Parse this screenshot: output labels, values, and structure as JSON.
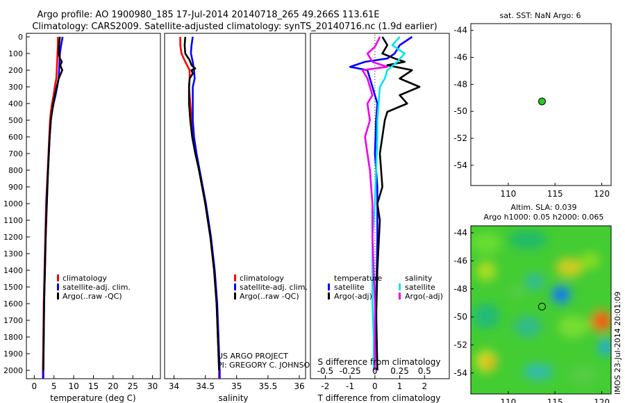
{
  "title_line1": "Argo profile: AO 1900980_185 17-Jul-2014 20140718_265 49.266S 113.61E",
  "title_line2": "Climatology: CARS2009. Satellite-adjusted climatology: synTS_20140716.nc (1.9d earlier)",
  "project_line1": "US ARGO PROJECT",
  "project_line2": "PI: GREGORY C. JOHNSON",
  "timestamp": "IMOS 23-Jul-2014 20:01:09",
  "colors": {
    "red": "#ff0000",
    "blue": "#0000ff",
    "black": "#000000",
    "cyan": "#00e5ee",
    "magenta": "#ee00ee",
    "green": "#22cc22"
  },
  "depth_ticks": [
    0,
    100,
    200,
    300,
    400,
    500,
    600,
    700,
    800,
    900,
    1000,
    1100,
    1200,
    1300,
    1400,
    1500,
    1600,
    1700,
    1800,
    1900,
    2000
  ],
  "chart_data": [
    {
      "type": "line",
      "xlabel": "temperature (deg C)",
      "xlim": [
        -2,
        32
      ],
      "ylim": [
        2070,
        0
      ],
      "xticks": [
        0,
        5,
        10,
        15,
        20,
        25,
        30
      ],
      "legend": [
        "climatology",
        "satellite-adj. clim.",
        "Argo(..raw -QC)"
      ],
      "series": [
        {
          "name": "climatology",
          "color": "red",
          "depth": [
            0,
            50,
            100,
            150,
            200,
            250,
            300,
            350,
            400,
            450,
            500,
            600,
            700,
            800,
            900,
            1000,
            1200,
            1400,
            1600,
            1800,
            2000,
            2050
          ],
          "values": [
            6.0,
            6.0,
            5.9,
            5.8,
            5.7,
            5.6,
            5.2,
            4.9,
            4.5,
            4.2,
            4.0,
            3.8,
            3.6,
            3.4,
            3.2,
            3.0,
            2.8,
            2.6,
            2.4,
            2.3,
            2.2,
            2.2
          ]
        },
        {
          "name": "satellite-adj. clim.",
          "color": "blue",
          "depth": [
            0,
            50,
            100,
            150,
            200,
            250,
            300,
            350,
            400,
            450,
            500,
            600,
            700,
            800,
            900,
            1000,
            1200,
            1400,
            1600,
            1800,
            2000,
            2050
          ],
          "values": [
            7.2,
            6.8,
            6.5,
            6.4,
            6.3,
            6.2,
            5.8,
            5.4,
            4.9,
            4.5,
            4.2,
            3.9,
            3.7,
            3.5,
            3.3,
            3.1,
            2.9,
            2.7,
            2.5,
            2.4,
            2.3,
            2.3
          ]
        },
        {
          "name": "Argo(..raw -QC)",
          "color": "black",
          "depth": [
            0,
            50,
            100,
            130,
            150,
            170,
            200,
            250,
            300,
            350,
            400,
            500,
            600,
            800,
            1000,
            1200,
            1400,
            1600,
            1800,
            2000
          ],
          "values": [
            6.5,
            6.3,
            6.2,
            6.5,
            7.0,
            6.6,
            7.1,
            6.2,
            5.7,
            5.2,
            4.8,
            4.2,
            3.9,
            3.5,
            3.2,
            2.9,
            2.7,
            2.5,
            2.4,
            2.3
          ]
        }
      ]
    },
    {
      "type": "line",
      "xlabel": "salinity",
      "xlim": [
        33.85,
        36.1
      ],
      "ylim": [
        2070,
        0
      ],
      "xticks": [
        34,
        34.5,
        35,
        35.5,
        36
      ],
      "legend": [
        "climatology",
        "satellite-adj. clim.",
        "Argo(..raw -QC)"
      ],
      "series": [
        {
          "name": "climatology",
          "color": "red",
          "depth": [
            0,
            50,
            100,
            150,
            200,
            250,
            300,
            400,
            500,
            600,
            700,
            800,
            900,
            1000,
            1200,
            1400,
            1600,
            1800,
            2000,
            2050
          ],
          "values": [
            34.1,
            34.1,
            34.12,
            34.18,
            34.25,
            34.25,
            34.24,
            34.26,
            34.28,
            34.3,
            34.35,
            34.4,
            34.45,
            34.5,
            34.58,
            34.64,
            34.68,
            34.7,
            34.72,
            34.72
          ]
        },
        {
          "name": "satellite-adj. clim.",
          "color": "blue",
          "depth": [
            0,
            50,
            100,
            150,
            200,
            250,
            300,
            400,
            500,
            600,
            700,
            800,
            900,
            1000,
            1200,
            1400,
            1600,
            1800,
            2000,
            2050
          ],
          "values": [
            34.3,
            34.28,
            34.27,
            34.3,
            34.32,
            34.33,
            34.3,
            34.3,
            34.3,
            34.32,
            34.36,
            34.41,
            34.46,
            34.51,
            34.59,
            34.65,
            34.69,
            34.71,
            34.73,
            34.73
          ]
        },
        {
          "name": "Argo(..raw -QC)",
          "color": "black",
          "depth": [
            0,
            50,
            100,
            140,
            170,
            190,
            200,
            220,
            250,
            300,
            400,
            500,
            600,
            700,
            800,
            900,
            1000,
            1200,
            1400,
            1600,
            1800,
            2000
          ],
          "values": [
            34.18,
            34.17,
            34.18,
            34.25,
            34.28,
            34.34,
            34.28,
            34.3,
            34.25,
            34.24,
            34.24,
            34.26,
            34.29,
            34.34,
            34.4,
            34.45,
            34.5,
            34.58,
            34.64,
            34.68,
            34.7,
            34.72
          ]
        }
      ]
    },
    {
      "type": "line",
      "xlabel": "T difference from climatology",
      "xlabel_top": "S difference from climatology",
      "xlim": [
        -2.6,
        3.0
      ],
      "ylim": [
        2070,
        0
      ],
      "xticks": [
        -2,
        -1,
        0,
        1,
        2
      ],
      "xticks_top": [
        "-0.5",
        "-0.25",
        "0",
        "0.25",
        "0.5"
      ],
      "legend_left_title": "temperature",
      "legend_right_title": "salinity",
      "legend_left": [
        "satellite",
        "Argo(-adj)"
      ],
      "legend_right": [
        "satellite",
        "Argo(-adj)"
      ],
      "series": [
        {
          "name": "T satellite",
          "color": "blue",
          "depth": [
            0,
            50,
            100,
            130,
            150,
            180,
            200,
            250,
            300,
            400,
            500,
            700,
            900,
            1200,
            1600,
            2000
          ],
          "values": [
            1.5,
            1.0,
            0.8,
            0.5,
            -0.4,
            -1.0,
            -0.3,
            -0.2,
            -0.1,
            0.1,
            0.05,
            0.0,
            0.1,
            0.1,
            0.05,
            0.1
          ]
        },
        {
          "name": "T Argo(-adj)",
          "color": "black",
          "depth": [
            0,
            50,
            100,
            130,
            150,
            170,
            200,
            250,
            300,
            350,
            400,
            450,
            500,
            700,
            900,
            1000,
            1100,
            1400,
            1700,
            2000
          ],
          "values": [
            0.3,
            0.5,
            0.3,
            0.8,
            1.2,
            0.5,
            1.5,
            1.0,
            1.8,
            1.0,
            1.3,
            0.5,
            0.4,
            0.2,
            0.3,
            0.1,
            0.2,
            0.1,
            0.05,
            0.1
          ]
        },
        {
          "name": "S satellite",
          "color": "cyan",
          "depth": [
            0,
            50,
            100,
            150,
            200,
            250,
            300,
            400,
            500,
            600,
            800,
            1000,
            1200,
            1400,
            1600,
            1800,
            2000
          ],
          "values": [
            1.0,
            0.7,
            1.2,
            0.9,
            0.5,
            0.4,
            0.2,
            0.15,
            0.1,
            0.1,
            0.05,
            0.0,
            -0.1,
            -0.1,
            -0.1,
            -0.05,
            -0.05
          ]
        },
        {
          "name": "S Argo(-adj)",
          "color": "magenta",
          "depth": [
            0,
            60,
            100,
            150,
            180,
            200,
            250,
            300,
            350,
            400,
            500,
            600,
            700,
            800,
            1000,
            1200,
            1400,
            1600,
            1800,
            2000
          ],
          "values": [
            0.2,
            0.0,
            -0.3,
            -0.1,
            0.5,
            -0.5,
            -0.3,
            -0.2,
            -0.1,
            -0.3,
            -0.2,
            -0.4,
            -0.3,
            -0.2,
            -0.1,
            -0.1,
            -0.05,
            0.0,
            0.0,
            0.0
          ]
        }
      ]
    },
    {
      "type": "scatter",
      "title": "sat. SST: NaN Argo: 6",
      "xlim": [
        106,
        121
      ],
      "ylim": [
        -55.5,
        -43.5
      ],
      "xticks": [
        110,
        115,
        120
      ],
      "yticks": [
        -44,
        -46,
        -48,
        -50,
        -52,
        -54
      ],
      "points": [
        {
          "x": 113.61,
          "y": -49.266
        }
      ]
    },
    {
      "type": "heatmap",
      "title_line1": "Altim. SLA: 0.039",
      "title_line2": "Argo h1000: 0.05 h2000: 0.065",
      "xlim": [
        106,
        121
      ],
      "ylim": [
        -55.5,
        -43.5
      ],
      "xticks": [
        110,
        115,
        120
      ],
      "yticks": [
        -44,
        -46,
        -48,
        -50,
        -52,
        -54
      ],
      "marker": {
        "x": 113.61,
        "y": -49.266
      }
    }
  ]
}
